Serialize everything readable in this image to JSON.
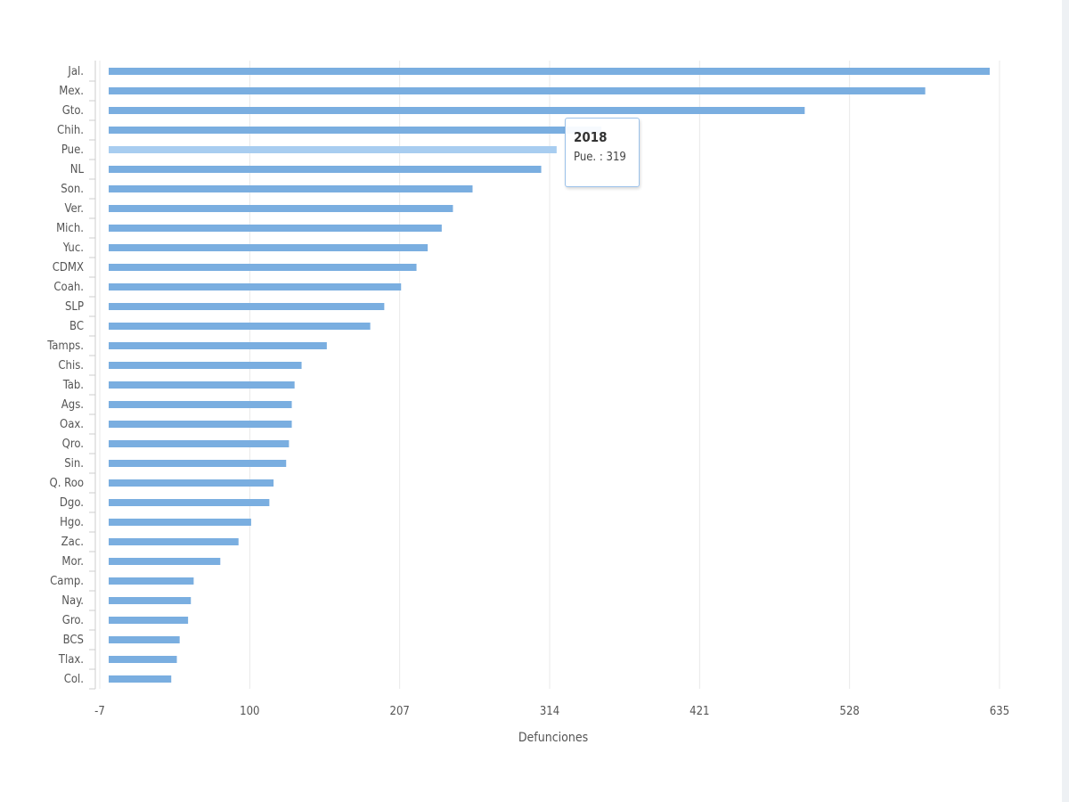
{
  "chart_data": {
    "type": "bar",
    "orientation": "horizontal",
    "categories": [
      "Jal.",
      "Mex.",
      "Gto.",
      "Chih.",
      "Pue.",
      "NL",
      "Son.",
      "Ver.",
      "Mich.",
      "Yuc.",
      "CDMX",
      "Coah.",
      "SLP",
      "BC",
      "Tamps.",
      "Chis.",
      "Tab.",
      "Ags.",
      "Oax.",
      "Qro.",
      "Sin.",
      "Q. Roo",
      "Dgo.",
      "Hgo.",
      "Zac.",
      "Mor.",
      "Camp.",
      "Nay.",
      "Gro.",
      "BCS",
      "Tlax.",
      "Col."
    ],
    "series": [
      {
        "name": "2018",
        "values": [
          628,
          582,
          496,
          351,
          319,
          308,
          259,
          245,
          237,
          227,
          219,
          208,
          196,
          186,
          155,
          137,
          132,
          130,
          130,
          128,
          126,
          117,
          114,
          101,
          92,
          79,
          60,
          58,
          56,
          50,
          48,
          44
        ]
      }
    ],
    "xlabel": "Defunciones",
    "ylabel": "",
    "xlim": [
      -7,
      635
    ],
    "xticks": [
      "-7",
      "100",
      "207",
      "314",
      "421",
      "528",
      "635"
    ],
    "grid": true,
    "legend": "none",
    "colors": {
      "bar": "#7aaee0",
      "highlight": "#a8cdf0"
    },
    "tooltip": {
      "title": "2018",
      "text": "Pue. : 319"
    }
  }
}
